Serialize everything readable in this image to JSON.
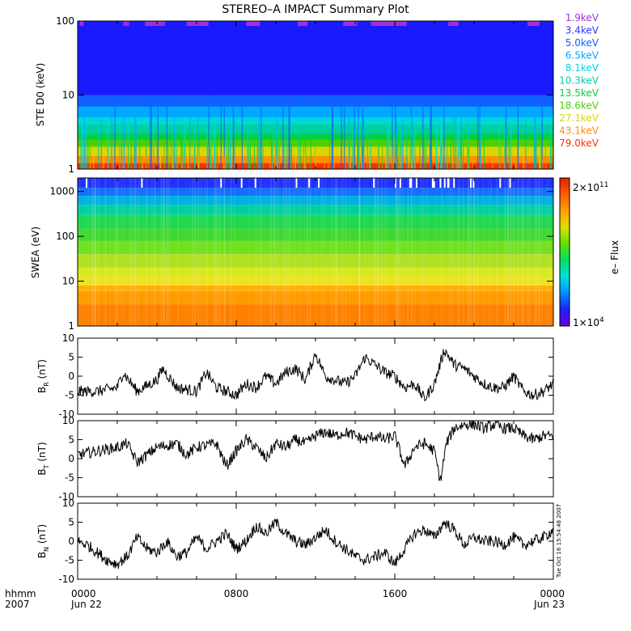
{
  "title": "STEREO–A IMPACT Summary Plot",
  "timestamp": "Tue Oct 16 15:54:48 2007",
  "time_axis": {
    "format_label": "hhmm",
    "year_label": "2007",
    "ticks": [
      {
        "hour": 0,
        "label": "0000",
        "sublabel": "Jun 22"
      },
      {
        "hour": 8,
        "label": "0800",
        "sublabel": ""
      },
      {
        "hour": 16,
        "label": "1600",
        "sublabel": ""
      },
      {
        "hour": 24,
        "label": "0000",
        "sublabel": "Jun 23"
      }
    ]
  },
  "colors": {
    "axis": "#000000",
    "trace": "#000000",
    "ste_background": "#1a1aff"
  },
  "colorbar": {
    "label": "e– Flux",
    "max_label": "2×10",
    "max_exp": "11",
    "min_label": "1×10",
    "min_exp": "4",
    "stops": [
      "#6a00d8",
      "#2020ff",
      "#0090ff",
      "#00e0e0",
      "#00e060",
      "#60e000",
      "#e0e000",
      "#ffa000",
      "#ff6000",
      "#e02000"
    ]
  },
  "chart_data": [
    {
      "type": "line",
      "panel": "ste",
      "ylabel": "STE D0 (keV)",
      "yscale": "log",
      "ylim": [
        1,
        100
      ],
      "yticks": [
        "1",
        "10",
        "100"
      ],
      "legend_position": "right",
      "series": [
        {
          "name": "1.9keV",
          "color": "#a030d8",
          "level_kev": 100
        },
        {
          "name": "3.4keV",
          "color": "#3030ff",
          "level_kev": 30
        },
        {
          "name": "5.0keV",
          "color": "#1060ff",
          "level_kev": 10
        },
        {
          "name": "6.5keV",
          "color": "#00a8ff",
          "level_kev": 7
        },
        {
          "name": "8.1keV",
          "color": "#00d8d8",
          "level_kev": 5
        },
        {
          "name": "10.3keV",
          "color": "#00d0a0",
          "level_kev": 4
        },
        {
          "name": "13.5keV",
          "color": "#00d040",
          "level_kev": 3
        },
        {
          "name": "18.6keV",
          "color": "#50d000",
          "level_kev": 2.5
        },
        {
          "name": "27.1keV",
          "color": "#d8d800",
          "level_kev": 2
        },
        {
          "name": "43.1keV",
          "color": "#ff9000",
          "level_kev": 1.5
        },
        {
          "name": "79.0keV",
          "color": "#ff3000",
          "level_kev": 1.2
        }
      ],
      "spike_periods_hours": [
        [
          0.1,
          0.3
        ],
        [
          2.3,
          2.6
        ],
        [
          3.4,
          4.4
        ],
        [
          5.5,
          6.6
        ],
        [
          8.5,
          9.2
        ],
        [
          11.1,
          11.6
        ],
        [
          13.4,
          14.1
        ],
        [
          14.8,
          16.6
        ],
        [
          18.7,
          19.2
        ],
        [
          22.7,
          23.3
        ]
      ]
    },
    {
      "type": "heatmap",
      "panel": "swea",
      "ylabel": "SWEA (eV)",
      "yscale": "log",
      "ylim": [
        1,
        2000
      ],
      "yticks": [
        "1",
        "10",
        "100",
        "1000"
      ],
      "zlim": [
        10000,
        200000000000
      ],
      "zlabel": "e– Flux"
    },
    {
      "type": "line",
      "panel": "br",
      "ylabel": "B",
      "ylabel_sub": "R",
      "ylabel_unit": "(nT)",
      "ylim": [
        -10,
        10
      ],
      "yticks": [
        "10",
        "5",
        "0",
        "-5",
        "-10"
      ],
      "x_hours": [
        0,
        1,
        2,
        2.3,
        3,
        4,
        4.3,
        5,
        6,
        6.5,
        7,
        8,
        8.5,
        9,
        9.5,
        10,
        10.5,
        11,
        11.5,
        12,
        12.5,
        13,
        13.5,
        14,
        14.5,
        15,
        15.5,
        16,
        16.5,
        17,
        17.5,
        18,
        18.5,
        19,
        19.5,
        20,
        20.5,
        21,
        21.5,
        22,
        22.5,
        23,
        23.5,
        24
      ],
      "values": [
        -4,
        -4,
        -3,
        1,
        -4,
        -1,
        2,
        -3,
        -4,
        1,
        -3,
        -5,
        -2,
        -3,
        0,
        -2,
        1,
        2,
        -1,
        6,
        0,
        -1,
        -2,
        0,
        5,
        3,
        1,
        0,
        -3,
        -2,
        -6,
        -2,
        7,
        3,
        2,
        0,
        -2,
        -3,
        -3,
        0,
        -4,
        -5,
        -4,
        -2
      ]
    },
    {
      "type": "line",
      "panel": "bt",
      "ylabel": "B",
      "ylabel_sub": "T",
      "ylabel_unit": "(nT)",
      "ylim": [
        -10,
        10
      ],
      "yticks": [
        "10",
        "5",
        "0",
        "-5",
        "-10"
      ],
      "x_hours": [
        0,
        1,
        2,
        2.5,
        3,
        4,
        5,
        5.5,
        6,
        7,
        7.5,
        8,
        8.5,
        9,
        9.5,
        10,
        10.5,
        11,
        11.5,
        12,
        12.5,
        13,
        13.5,
        14,
        14.5,
        15,
        15.5,
        16,
        16.5,
        17,
        17.5,
        18,
        18.3,
        18.6,
        19,
        19.5,
        20,
        20.5,
        21,
        21.5,
        22,
        22.5,
        23,
        23.5,
        24
      ],
      "values": [
        1,
        2,
        3,
        4,
        -1,
        3,
        4,
        1,
        3,
        4,
        -2,
        2,
        5,
        3,
        0,
        4,
        3,
        5,
        4,
        6,
        7,
        6,
        7,
        6,
        5,
        6,
        5,
        6,
        -2,
        3,
        4,
        2,
        -6,
        4,
        8,
        9,
        9,
        8,
        9,
        8,
        8,
        6,
        5,
        6,
        6
      ]
    },
    {
      "type": "line",
      "panel": "bn",
      "ylabel": "B",
      "ylabel_sub": "N",
      "ylabel_unit": "(nT)",
      "ylim": [
        -10,
        10
      ],
      "yticks": [
        "10",
        "5",
        "0",
        "-5",
        "-10"
      ],
      "x_hours": [
        0,
        0.5,
        1,
        1.5,
        2,
        2.5,
        3,
        3.5,
        4,
        4.5,
        5,
        5.5,
        6,
        6.5,
        7,
        7.5,
        8,
        8.5,
        9,
        9.5,
        10,
        10.5,
        11,
        11.5,
        12,
        12.5,
        13,
        13.5,
        14,
        14.5,
        15,
        15.5,
        16,
        16.5,
        17,
        17.5,
        18,
        18.5,
        19,
        19.5,
        20,
        20.5,
        21,
        21.5,
        22,
        22.5,
        23,
        23.5,
        24
      ],
      "values": [
        0,
        -1,
        -3,
        -5,
        -6,
        -4,
        1,
        -2,
        -3,
        0,
        -4,
        -3,
        1,
        -2,
        0,
        2,
        -2,
        0,
        4,
        2,
        5,
        2,
        0,
        -1,
        1,
        3,
        0,
        -2,
        -4,
        -5,
        -4,
        -3,
        -6,
        -2,
        2,
        3,
        1,
        5,
        3,
        -1,
        1,
        0,
        0,
        -1,
        1,
        -1,
        0,
        1,
        3
      ]
    }
  ]
}
